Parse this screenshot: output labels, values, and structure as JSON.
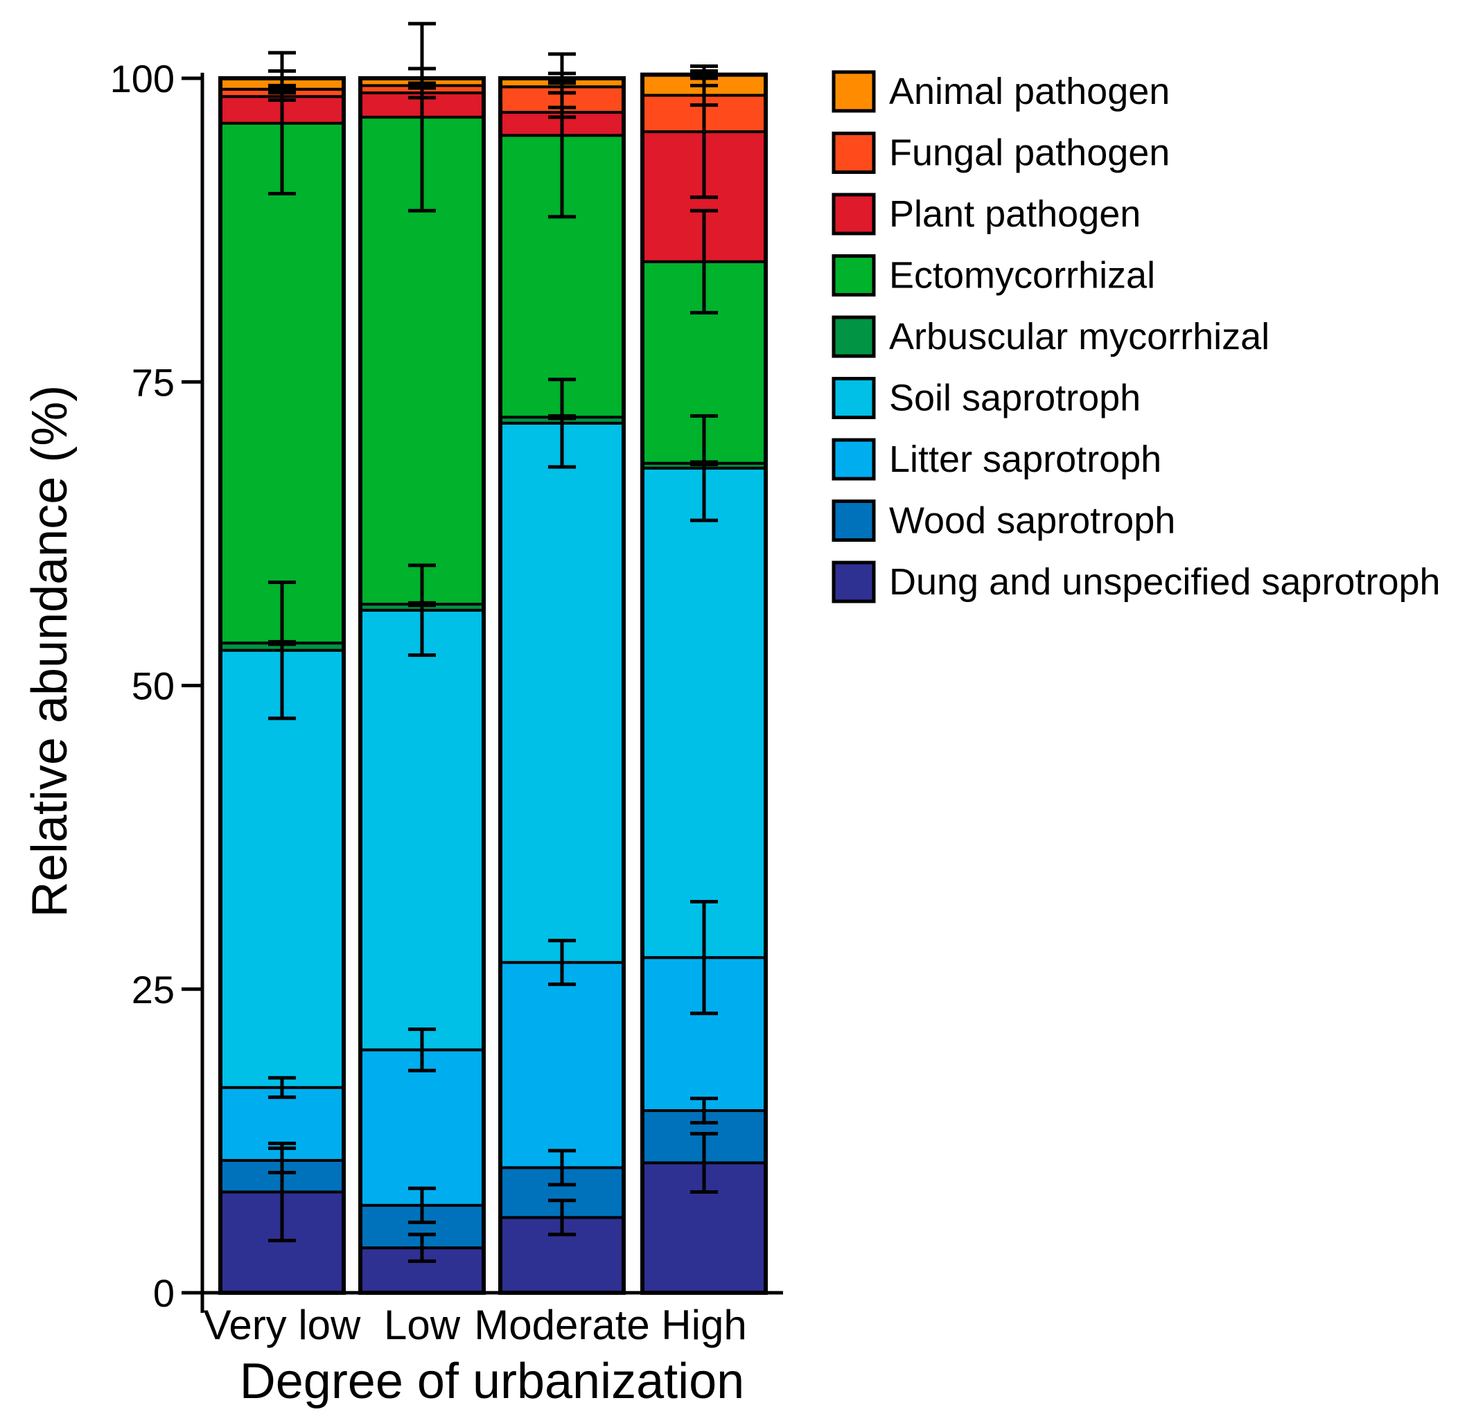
{
  "chart_data": {
    "type": "bar",
    "stacked": true,
    "xlabel": "Degree of urbanization",
    "ylabel": "Relative abundance (%)",
    "ylim": [
      0,
      100
    ],
    "yticks": [
      "0",
      "25",
      "50",
      "75",
      "100"
    ],
    "categories": [
      "Very low",
      "Low",
      "Moderate",
      "High"
    ],
    "legend_position": "right",
    "series": [
      {
        "name": "Dung and unspecified saprotroph",
        "color": "#2e3192",
        "values": [
          8.3,
          3.7,
          6.2,
          10.7
        ],
        "errors": [
          4.0,
          1.1,
          1.4,
          2.4
        ]
      },
      {
        "name": "Wood saprotroph",
        "color": "#0072bc",
        "values": [
          2.6,
          3.5,
          4.1,
          4.3
        ],
        "errors": [
          1.0,
          1.4,
          1.4,
          1.0
        ]
      },
      {
        "name": "Litter saprotroph",
        "color": "#00aeef",
        "values": [
          6.0,
          12.8,
          16.9,
          12.6
        ],
        "errors": [
          0.8,
          1.7,
          1.8,
          4.6
        ]
      },
      {
        "name": "Soil saprotroph",
        "color": "#00c0e8",
        "values": [
          36.0,
          36.2,
          44.4,
          40.3
        ],
        "errors": [
          5.6,
          3.7,
          3.6,
          4.3
        ]
      },
      {
        "name": "Arbuscular mycorrhizal",
        "color": "#009444",
        "values": [
          0.6,
          0.5,
          0.5,
          0.4
        ],
        "errors": [
          0.1,
          0.1,
          0.1,
          0.1
        ]
      },
      {
        "name": "Ectomycorrhizal",
        "color": "#00b22c",
        "values": [
          42.8,
          40.1,
          23.2,
          16.6
        ],
        "errors": [
          5.8,
          7.7,
          6.7,
          4.2
        ]
      },
      {
        "name": "Plant pathogen",
        "color": "#df1a2a",
        "values": [
          2.2,
          2.0,
          1.9,
          10.7
        ],
        "errors": [
          0.3,
          0.4,
          0.4,
          5.4
        ]
      },
      {
        "name": "Fungal pathogen",
        "color": "#ff4b1c",
        "values": [
          0.6,
          0.6,
          2.1,
          3.0
        ],
        "errors": [
          0.2,
          0.2,
          0.5,
          0.8
        ]
      },
      {
        "name": "Animal pathogen",
        "color": "#ff8c00",
        "values": [
          0.9,
          0.6,
          0.7,
          1.7
        ],
        "errors": [
          0.6,
          0.8,
          0.4,
          0.3
        ]
      }
    ],
    "legend": [
      {
        "label": "Animal pathogen",
        "color": "#ff8c00"
      },
      {
        "label": "Fungal pathogen",
        "color": "#ff4b1c"
      },
      {
        "label": "Plant pathogen",
        "color": "#df1a2a"
      },
      {
        "label": "Ectomycorrhizal",
        "color": "#00b22c"
      },
      {
        "label": "Arbuscular mycorrhizal",
        "color": "#009444"
      },
      {
        "label": "Soil saprotroph",
        "color": "#00c0e8"
      },
      {
        "label": "Litter saprotroph",
        "color": "#00aeef"
      },
      {
        "label": "Wood saprotroph",
        "color": "#0072bc"
      },
      {
        "label": "Dung and unspecified saprotroph",
        "color": "#2e3192"
      }
    ]
  }
}
